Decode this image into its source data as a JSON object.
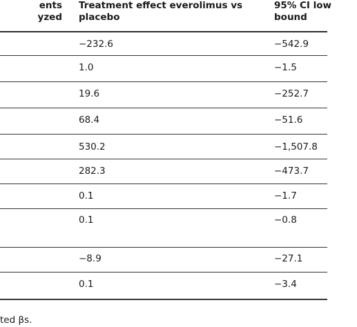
{
  "table": {
    "headers": {
      "col1_line1": "ents",
      "col1_line2": "yzed",
      "col2_line1": "Treatment effect everolimus vs",
      "col2_line2": "placebo",
      "col3_line1": "95% CI low",
      "col3_line2": "bound"
    },
    "rows": [
      {
        "effect": "−232.6",
        "ci_low": "−542.9"
      },
      {
        "effect": "1.0",
        "ci_low": "−1.5"
      },
      {
        "effect": "19.6",
        "ci_low": "−252.7"
      },
      {
        "effect": "68.4",
        "ci_low": "−51.6"
      },
      {
        "effect": "530.2",
        "ci_low": "−1,507.8"
      },
      {
        "effect": "282.3",
        "ci_low": "−473.7"
      },
      {
        "effect": "0.1",
        "ci_low": "−1.7"
      },
      {
        "effect": "0.1",
        "ci_low": "−0.8"
      },
      {
        "effect": "−8.9",
        "ci_low": "−27.1"
      },
      {
        "effect": "0.1",
        "ci_low": "−3.4"
      }
    ]
  },
  "footer": {
    "note": "ted βs."
  }
}
